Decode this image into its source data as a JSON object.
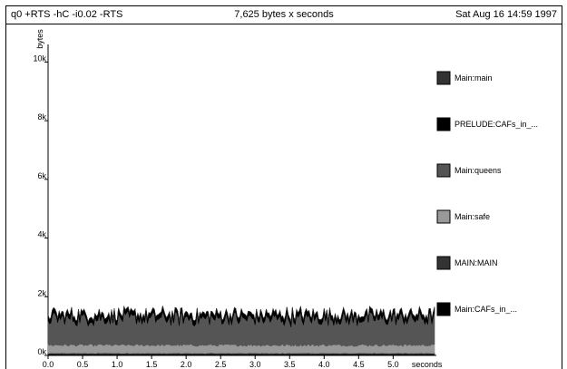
{
  "header": {
    "left": "q0 +RTS -hC -i0.02 -RTS",
    "center": "7,625 bytes x seconds",
    "right": "Sat Aug 16 14:59 1997"
  },
  "chart_data": {
    "type": "area",
    "title": "7,625 bytes x seconds",
    "xlabel": "seconds",
    "ylabel": "bytes",
    "xlim": [
      0,
      5.6
    ],
    "ylim": [
      0,
      10600
    ],
    "x_ticks": [
      "0.0",
      "0.5",
      "1.0",
      "1.5",
      "2.0",
      "2.5",
      "3.0",
      "3.5",
      "4.0",
      "4.5",
      "5.0"
    ],
    "x_tick_values": [
      0,
      0.5,
      1.0,
      1.5,
      2.0,
      2.5,
      3.0,
      3.5,
      4.0,
      4.5,
      5.0
    ],
    "y_ticks": [
      "0k",
      "2k",
      "4k",
      "6k",
      "8k",
      "10k"
    ],
    "y_tick_values": [
      0,
      2000,
      4000,
      6000,
      8000,
      10000
    ],
    "legend_position": "right",
    "grid": false,
    "series": [
      {
        "name": "Main:CAFs_in_...",
        "color": "#000000",
        "approx_bytes": 40
      },
      {
        "name": "MAIN:MAIN",
        "color": "#333333",
        "approx_bytes": 40
      },
      {
        "name": "Main:safe",
        "color": "#999999",
        "approx_bytes": 270
      },
      {
        "name": "Main:queens",
        "color": "#555555",
        "approx_bytes": 900
      },
      {
        "name": "PRELUDE:CAFs_in_...",
        "color": "#000000",
        "approx_bytes": 160
      },
      {
        "name": "Main:main",
        "color": "#333333",
        "approx_bytes": 0
      }
    ]
  }
}
